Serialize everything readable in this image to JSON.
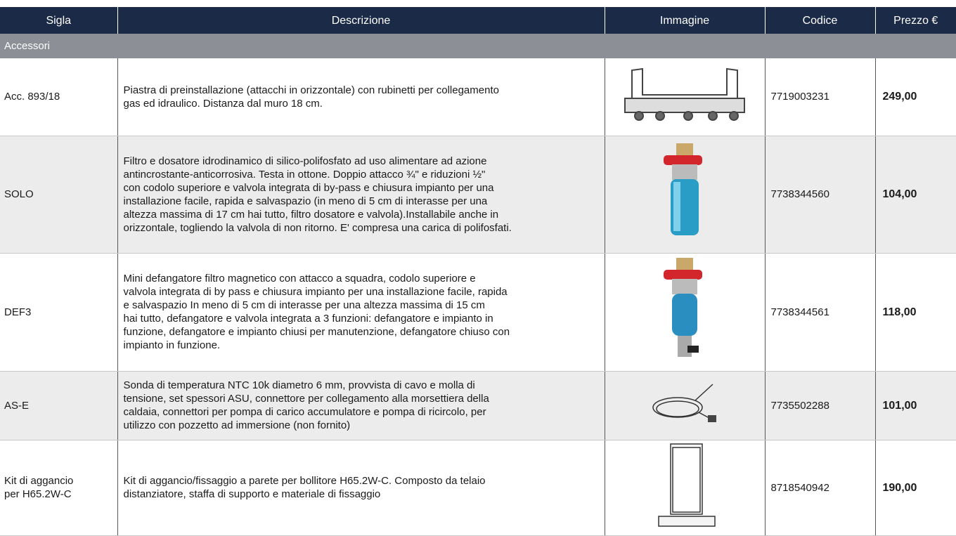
{
  "table": {
    "header": [
      "Sigla",
      "Descrizione",
      "Immagine",
      "Codice",
      "Prezzo €"
    ],
    "section": "Accessori",
    "rows": [
      {
        "sigla": [
          "Acc. 893/18"
        ],
        "descrizione": [
          "Piastra di preinstallazione (attacchi in orizzontale) con rubinetti per collegamento",
          "gas ed idraulico. Distanza dal muro 18 cm."
        ],
        "codice": "7719003231",
        "prezzo": "249,00"
      },
      {
        "sigla": [
          "SOLO"
        ],
        "descrizione": [
          "Filtro e dosatore idrodinamico di silico-polifosfato ad uso alimentare ad azione",
          "antincrostante-anticorrosiva. Testa in ottone. Doppio attacco ¾\" e riduzioni ½\"",
          "con codolo superiore e valvola integrata di by-pass e chiusura impianto per una",
          "installazione facile, rapida e salvaspazio (in meno di 5 cm di interasse per una",
          "altezza massima di 17 cm hai tutto, filtro dosatore e valvola).Installabile anche in",
          "orizzontale, togliendo la valvola di non ritorno. E' compresa una carica di polifosfati."
        ],
        "codice": "7738344560",
        "prezzo": "104,00"
      },
      {
        "sigla": [
          "DEF3"
        ],
        "descrizione": [
          "Mini defangatore filtro magnetico con attacco a squadra, codolo superiore e",
          "valvola integrata di by pass e chiusura impianto per una installazione facile, rapida",
          "e salvaspazio In meno di 5 cm di interasse per una altezza massima di 15 cm",
          "hai tutto, defangatore e valvola integrata a 3 funzioni: defangatore e impianto in",
          "funzione, defangatore e impianto chiusi per manutenzione, defangatore chiuso con",
          "impianto in funzione."
        ],
        "codice": "7738344561",
        "prezzo": "118,00"
      },
      {
        "sigla": [
          "AS-E"
        ],
        "descrizione": [
          "Sonda di temperatura NTC 10k diametro 6 mm, provvista di cavo e molla di",
          "tensione, set spessori ASU, connettore per collegamento alla morsettiera della",
          "caldaia, connettori per pompa di carico accumulatore e pompa di ricircolo, per",
          "utilizzo con pozzetto ad immersione (non fornito)"
        ],
        "codice": "7735502288",
        "prezzo": "101,00"
      },
      {
        "sigla": [
          "Kit di aggancio",
          "per H65.2W-C"
        ],
        "descrizione": [
          "Kit di aggancio/fissaggio a parete per bollitore H65.2W-C. Composto da telaio",
          "distanziatore, staffa di supporto e materiale di fissaggio"
        ],
        "codice": "8718540942",
        "prezzo": "190,00"
      }
    ]
  }
}
